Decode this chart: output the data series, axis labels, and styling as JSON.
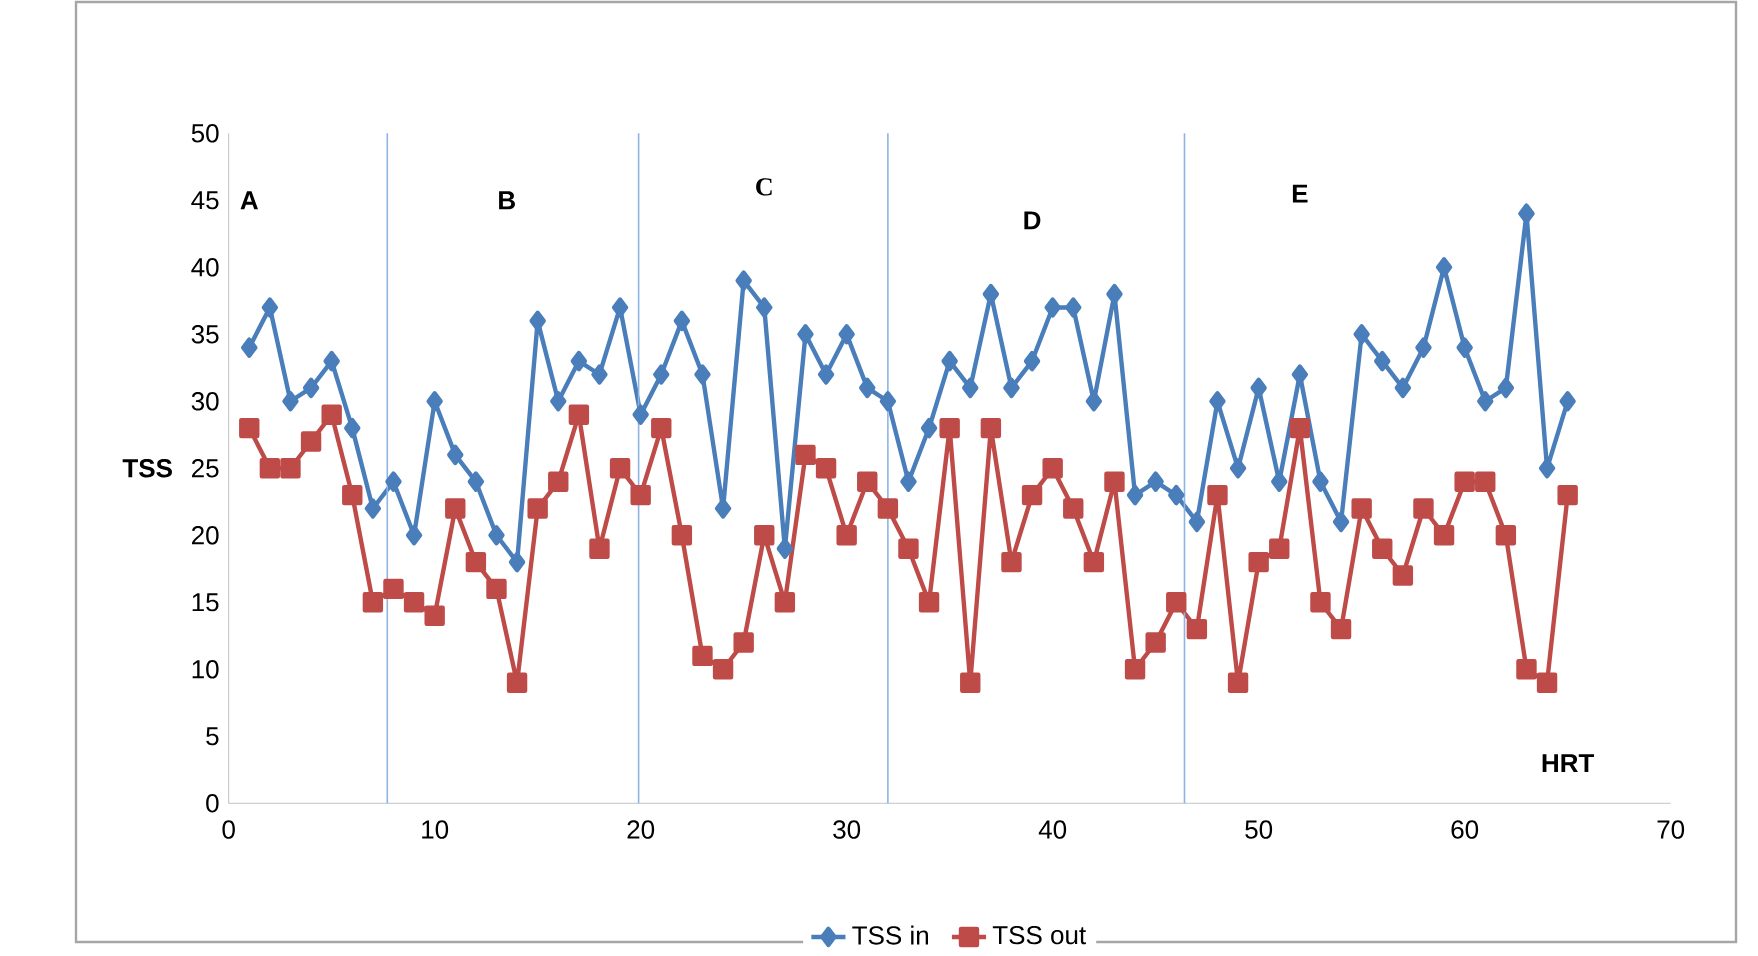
{
  "chart_data": {
    "type": "line",
    "ylabel": "TSS",
    "xlim": [
      0,
      70
    ],
    "xticks": [
      0,
      10,
      20,
      30,
      40,
      50,
      60,
      70
    ],
    "ylim": [
      0,
      50
    ],
    "yticks": [
      0,
      5,
      10,
      15,
      20,
      25,
      30,
      35,
      40,
      45,
      50
    ],
    "grid": false,
    "legend": "bottom",
    "x": [
      1,
      2,
      3,
      4,
      5,
      6,
      7,
      8,
      9,
      10,
      11,
      12,
      13,
      14,
      15,
      16,
      17,
      18,
      19,
      20,
      21,
      22,
      23,
      24,
      25,
      26,
      27,
      28,
      29,
      30,
      31,
      32,
      33,
      34,
      35,
      36,
      37,
      38,
      39,
      40,
      41,
      42,
      43,
      44,
      45,
      46,
      47,
      48,
      49,
      50,
      51,
      52,
      53,
      54,
      55,
      56,
      57,
      58,
      59,
      60,
      61,
      62,
      63,
      64,
      65
    ],
    "series": [
      {
        "name": "TSS in",
        "color": "#4a7ebb",
        "marker": "diamond",
        "values": [
          34,
          37,
          30,
          31,
          33,
          28,
          22,
          24,
          20,
          30,
          26,
          24,
          20,
          18,
          36,
          30,
          33,
          32,
          37,
          29,
          32,
          36,
          32,
          22,
          39,
          37,
          19,
          35,
          32,
          35,
          31,
          30,
          24,
          28,
          33,
          31,
          38,
          31,
          33,
          37,
          37,
          30,
          38,
          23,
          24,
          23,
          21,
          30,
          25,
          31,
          24,
          32,
          24,
          21,
          35,
          33,
          31,
          34,
          40,
          34,
          30,
          31,
          44,
          25,
          30
        ]
      },
      {
        "name": "TSS out",
        "color": "#be4b48",
        "marker": "square",
        "values": [
          28,
          25,
          25,
          27,
          29,
          23,
          15,
          16,
          15,
          14,
          22,
          18,
          16,
          9,
          22,
          24,
          29,
          19,
          25,
          23,
          28,
          20,
          11,
          10,
          12,
          20,
          15,
          26,
          25,
          20,
          24,
          22,
          19,
          15,
          28,
          9,
          28,
          18,
          23,
          25,
          22,
          18,
          24,
          10,
          12,
          15,
          13,
          23,
          9,
          18,
          19,
          28,
          15,
          13,
          22,
          19,
          17,
          22,
          20,
          24,
          24,
          20,
          10,
          9,
          23
        ]
      }
    ],
    "ref_lines": [
      {
        "axis": "x",
        "value": 7.7,
        "color": "#8eb4e3"
      },
      {
        "axis": "x",
        "value": 19.9,
        "color": "#8eb4e3"
      },
      {
        "axis": "x",
        "value": 32,
        "color": "#8eb4e3"
      },
      {
        "axis": "x",
        "value": 46.4,
        "color": "#8eb4e3"
      }
    ],
    "annotations": [
      "A",
      "B",
      "C",
      "D",
      "E",
      "HRT"
    ]
  }
}
